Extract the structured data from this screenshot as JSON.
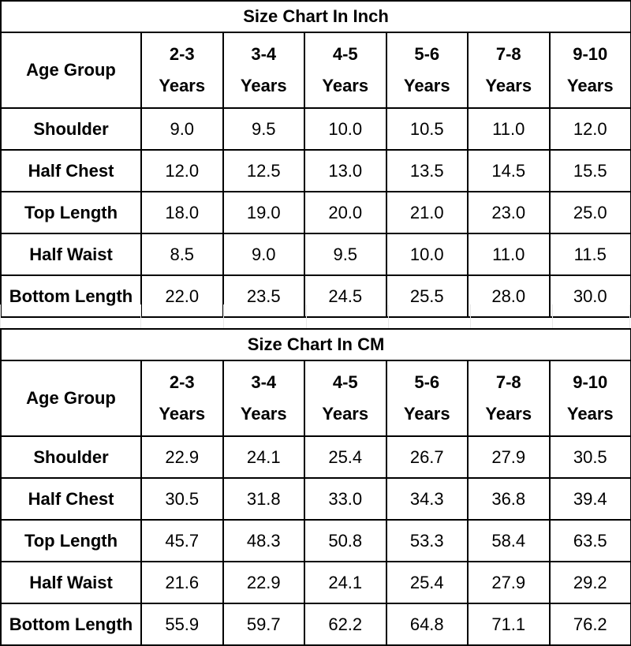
{
  "chart_data": [
    {
      "type": "table",
      "title": "Size Chart In Inch",
      "header_label": "Age Group",
      "columns": [
        [
          "2-3",
          "Years"
        ],
        [
          "3-4",
          "Years"
        ],
        [
          "4-5",
          "Years"
        ],
        [
          "5-6",
          "Years"
        ],
        [
          "7-8",
          "Years"
        ],
        [
          "9-10",
          "Years"
        ]
      ],
      "rows": [
        {
          "label": "Shoulder",
          "values": [
            "9.0",
            "9.5",
            "10.0",
            "10.5",
            "11.0",
            "12.0"
          ]
        },
        {
          "label": "Half Chest",
          "values": [
            "12.0",
            "12.5",
            "13.0",
            "13.5",
            "14.5",
            "15.5"
          ]
        },
        {
          "label": "Top Length",
          "values": [
            "18.0",
            "19.0",
            "20.0",
            "21.0",
            "23.0",
            "25.0"
          ]
        },
        {
          "label": "Half Waist",
          "values": [
            "8.5",
            "9.0",
            "9.5",
            "10.0",
            "11.0",
            "11.5"
          ]
        },
        {
          "label": "Bottom Length",
          "values": [
            "22.0",
            "23.5",
            "24.5",
            "25.5",
            "28.0",
            "30.0"
          ]
        }
      ]
    },
    {
      "type": "table",
      "title": "Size Chart In CM",
      "header_label": "Age Group",
      "columns": [
        [
          "2-3",
          "Years"
        ],
        [
          "3-4",
          "Years"
        ],
        [
          "4-5",
          "Years"
        ],
        [
          "5-6",
          "Years"
        ],
        [
          "7-8",
          "Years"
        ],
        [
          "9-10",
          "Years"
        ]
      ],
      "rows": [
        {
          "label": "Shoulder",
          "values": [
            "22.9",
            "24.1",
            "25.4",
            "26.7",
            "27.9",
            "30.5"
          ]
        },
        {
          "label": "Half Chest",
          "values": [
            "30.5",
            "31.8",
            "33.0",
            "34.3",
            "36.8",
            "39.4"
          ]
        },
        {
          "label": "Top Length",
          "values": [
            "45.7",
            "48.3",
            "50.8",
            "53.3",
            "58.4",
            "63.5"
          ]
        },
        {
          "label": "Half Waist",
          "values": [
            "21.6",
            "22.9",
            "24.1",
            "25.4",
            "27.9",
            "29.2"
          ]
        },
        {
          "label": "Bottom Length",
          "values": [
            "55.9",
            "59.7",
            "62.2",
            "64.8",
            "71.1",
            "76.2"
          ]
        }
      ]
    }
  ]
}
